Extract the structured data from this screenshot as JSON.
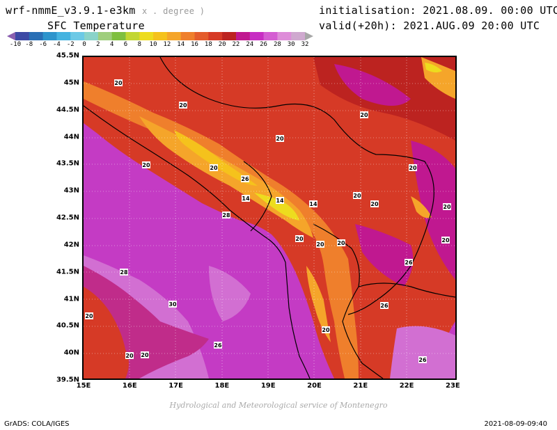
{
  "header": {
    "model": "wrf-nmmE_v3.9.1-e3km",
    "units": "x . degree )",
    "variable": "SFC Temperature",
    "initialisation": "initialisation: 2021.08.09. 00:00 UTC",
    "valid": "valid(+20h): 2021.AUG.09 20:00 UTC"
  },
  "colorbar": {
    "labels": [
      "-10",
      "-8",
      "-6",
      "-4",
      "-2",
      "0",
      "2",
      "4",
      "6",
      "8",
      "10",
      "12",
      "14",
      "16",
      "18",
      "20",
      "22",
      "24",
      "26",
      "28",
      "30",
      "32"
    ],
    "colors": [
      "#8a5fb0",
      "#3d4aa5",
      "#2a6fb5",
      "#2d94cc",
      "#44b3e0",
      "#6cc9e6",
      "#8ad3c9",
      "#9fce7d",
      "#7fbf3f",
      "#c2d632",
      "#eddc1e",
      "#f5c21c",
      "#f5a52a",
      "#ef7f2c",
      "#e45c2c",
      "#d63a26",
      "#bc2320",
      "#c01890",
      "#c72ec3",
      "#d45dd2",
      "#de8dd9",
      "#cfa9cf",
      "#a7a7a7"
    ]
  },
  "map": {
    "latitude_labels": [
      "45.5N",
      "45N",
      "44.5N",
      "44N",
      "43.5N",
      "43N",
      "42.5N",
      "42N",
      "41.5N",
      "41N",
      "40.5N",
      "40N",
      "39.5N"
    ],
    "longitude_labels": [
      "15E",
      "16E",
      "17E",
      "18E",
      "19E",
      "20E",
      "21E",
      "22E",
      "23E"
    ],
    "contour_labels": [
      "20",
      "20",
      "20",
      "20",
      "20",
      "26",
      "20",
      "14",
      "14",
      "14",
      "20",
      "20",
      "28",
      "20",
      "20",
      "20",
      "20",
      "20",
      "20",
      "26",
      "28",
      "30",
      "20",
      "26",
      "26",
      "20",
      "20",
      "26",
      "20"
    ]
  },
  "footer": {
    "credit": "Hydrological and Meteorological service of Montenegro",
    "software": "GrADS: COLA/IGES",
    "timestamp": "2021-08-09-09:40"
  }
}
